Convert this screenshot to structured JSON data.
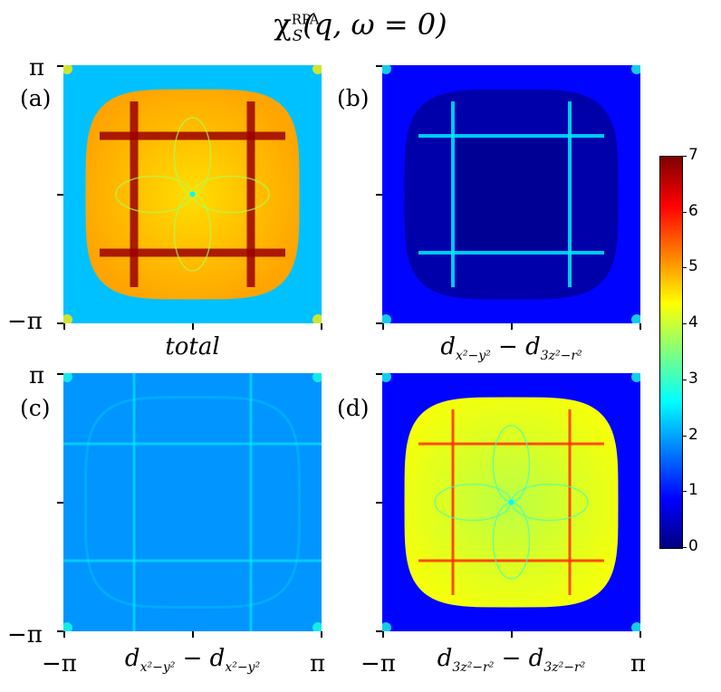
{
  "figure": {
    "title_main": "χ",
    "title_sup": "RPA",
    "title_sub": "S",
    "title_args": "(q, ω = 0)"
  },
  "axis_ticks": {
    "pi": "π",
    "minus_pi": "−π"
  },
  "panels": [
    {
      "id": "a",
      "label": "(a)",
      "xlabel": "total"
    },
    {
      "id": "b",
      "label": "(b)",
      "xlabel_main": "d",
      "xlabel_sub1": "x²−y²",
      "xlabel_sep": " − d",
      "xlabel_sub2": "3z²−r²"
    },
    {
      "id": "c",
      "label": "(c)",
      "xlabel_main": "d",
      "xlabel_sub1": "x²−y²",
      "xlabel_sep": " − d",
      "xlabel_sub2": "x²−y²"
    },
    {
      "id": "d",
      "label": "(d)",
      "xlabel_main": "d",
      "xlabel_sub1": "3z²−r²",
      "xlabel_sep": " − d",
      "xlabel_sub2": "3z²−r²"
    }
  ],
  "colorbar": {
    "colormap": "jet",
    "ticks": [
      "0",
      "1",
      "2",
      "3",
      "4",
      "5",
      "6",
      "7"
    ],
    "colors": [
      "#00007f",
      "#0000ff",
      "#007fff",
      "#00ffff",
      "#7fff7f",
      "#ffff00",
      "#ff7f00",
      "#ff0000",
      "#7f0000"
    ]
  },
  "chart_data": {
    "type": "heatmap",
    "title": "χ_S^RPA(q, ω = 0)",
    "colormap": "jet",
    "color_range": [
      0,
      7
    ],
    "x_range": [
      "−π",
      "π"
    ],
    "y_range": [
      "−π",
      "π"
    ],
    "panels": [
      {
        "label": "(a)",
        "name": "total",
        "background_value": 2.2,
        "interior_value": 4.6,
        "ridge_value": 6.8
      },
      {
        "label": "(b)",
        "name": "d_{x²−y²} − d_{3z²−r²}",
        "background_value": 0.9,
        "interior_value": 0.3,
        "ridge_value": 2.5
      },
      {
        "label": "(c)",
        "name": "d_{x²−y²} − d_{x²−y²}",
        "background_value": 1.9,
        "interior_value": 1.6,
        "ridge_value": 2.6
      },
      {
        "label": "(d)",
        "name": "d_{3z²−r²} − d_{3z²−r²}",
        "background_value": 0.9,
        "interior_value": 3.9,
        "ridge_value": 5.8
      }
    ]
  }
}
